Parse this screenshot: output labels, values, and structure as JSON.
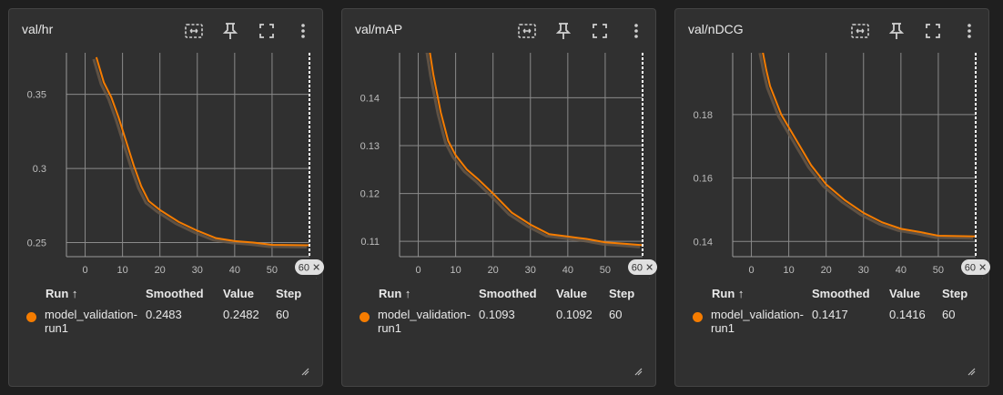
{
  "colors": {
    "series": "#f57c00",
    "shadow": "#6a5a4a",
    "grid": "#8a8a8a"
  },
  "table": {
    "col_run": "Run ↑",
    "col_smoothed": "Smoothed",
    "col_value": "Value",
    "col_step": "Step"
  },
  "step_badge": "60 ✕",
  "icons": [
    "fit-domain-icon",
    "pin-icon",
    "fullscreen-icon",
    "more-vert-icon",
    "resize-icon"
  ],
  "cards": [
    {
      "title": "val/hr",
      "run_name_line1": "model_validation-",
      "run_name_line2": "run1",
      "smoothed": "0.2483",
      "value": "0.2482",
      "step": "60"
    },
    {
      "title": "val/mAP",
      "run_name_line1": "model_validation-",
      "run_name_line2": "run1",
      "smoothed": "0.1093",
      "value": "0.1092",
      "step": "60"
    },
    {
      "title": "val/nDCG",
      "run_name_line1": "model_validation-",
      "run_name_line2": "run1",
      "smoothed": "0.1417",
      "value": "0.1416",
      "step": "60"
    }
  ],
  "chart_data": [
    {
      "type": "line",
      "title": "val/hr",
      "xticks": [
        0,
        10,
        20,
        30,
        40,
        50
      ],
      "xlim": [
        -5,
        60
      ],
      "yticks": [
        0.25,
        0.3,
        0.35
      ],
      "ytick_labels": [
        "0.25",
        "0.3",
        "0.35"
      ],
      "ylim": [
        0.2405,
        0.378
      ],
      "series": [
        {
          "name": "model_validation-run1",
          "x": [
            3,
            5,
            7,
            9,
            11,
            13,
            15,
            17,
            20,
            25,
            30,
            35,
            40,
            45,
            50,
            55,
            60
          ],
          "y": [
            0.375,
            0.358,
            0.348,
            0.334,
            0.318,
            0.302,
            0.288,
            0.278,
            0.272,
            0.264,
            0.258,
            0.253,
            0.251,
            0.25,
            0.2485,
            0.2483,
            0.2482
          ]
        }
      ],
      "marker_step": 60
    },
    {
      "type": "line",
      "title": "val/mAP",
      "xticks": [
        0,
        10,
        20,
        30,
        40,
        50
      ],
      "xlim": [
        -5,
        60
      ],
      "yticks": [
        0.11,
        0.12,
        0.13,
        0.14
      ],
      "ytick_labels": [
        "0.11",
        "0.12",
        "0.13",
        "0.14"
      ],
      "ylim": [
        0.1068,
        0.1494
      ],
      "series": [
        {
          "name": "model_validation-run1",
          "x": [
            3,
            4,
            5,
            6,
            7,
            8,
            10,
            13,
            16,
            20,
            25,
            30,
            35,
            40,
            45,
            50,
            55,
            60
          ],
          "y": [
            0.15,
            0.145,
            0.141,
            0.137,
            0.134,
            0.131,
            0.128,
            0.125,
            0.123,
            0.12,
            0.116,
            0.1135,
            0.1115,
            0.111,
            0.1105,
            0.1098,
            0.1095,
            0.1092
          ]
        }
      ],
      "marker_step": 60
    },
    {
      "type": "line",
      "title": "val/nDCG",
      "xticks": [
        0,
        10,
        20,
        30,
        40,
        50
      ],
      "xlim": [
        -5,
        60
      ],
      "yticks": [
        0.14,
        0.16,
        0.18
      ],
      "ytick_labels": [
        "0.14",
        "0.16",
        "0.18"
      ],
      "ylim": [
        0.1352,
        0.1995
      ],
      "series": [
        {
          "name": "model_validation-run1",
          "x": [
            3,
            4,
            5,
            6,
            7,
            8,
            10,
            13,
            16,
            20,
            25,
            30,
            35,
            40,
            45,
            50,
            55,
            60
          ],
          "y": [
            0.2,
            0.194,
            0.189,
            0.186,
            0.183,
            0.18,
            0.176,
            0.17,
            0.164,
            0.158,
            0.153,
            0.149,
            0.146,
            0.144,
            0.143,
            0.1418,
            0.1417,
            0.1416
          ]
        }
      ],
      "marker_step": 60
    }
  ]
}
